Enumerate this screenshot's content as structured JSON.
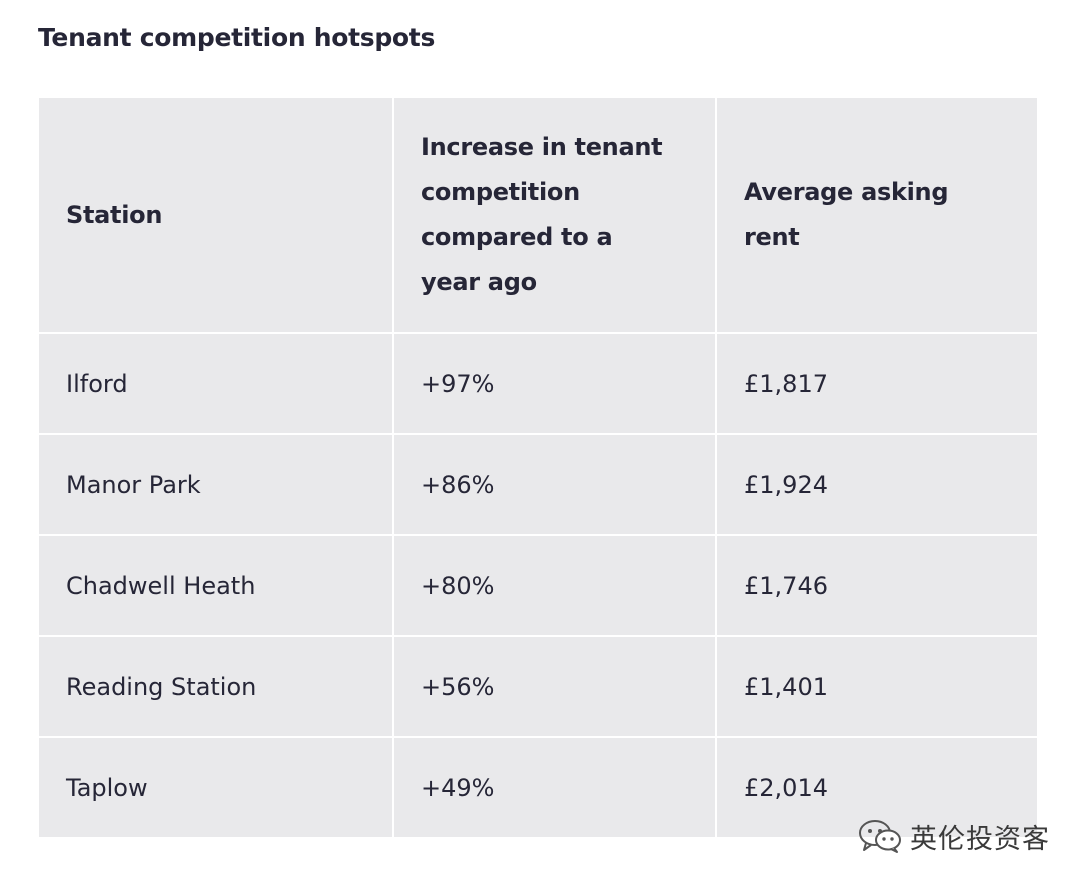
{
  "title": "Tenant competition hotspots",
  "table": {
    "headers": [
      "Station",
      "Increase in tenant competition compared to a year ago",
      "Average asking rent"
    ],
    "rows": [
      [
        "Ilford",
        "+97%",
        "£1,817"
      ],
      [
        "Manor Park",
        "+86%",
        "£1,924"
      ],
      [
        "Chadwell Heath",
        "+80%",
        "£1,746"
      ],
      [
        "Reading Station",
        "+56%",
        "£1,401"
      ],
      [
        "Taplow",
        "+49%",
        "£2,014"
      ]
    ]
  },
  "watermark": {
    "text": "英伦投资客",
    "icon": "wechat-icon"
  }
}
